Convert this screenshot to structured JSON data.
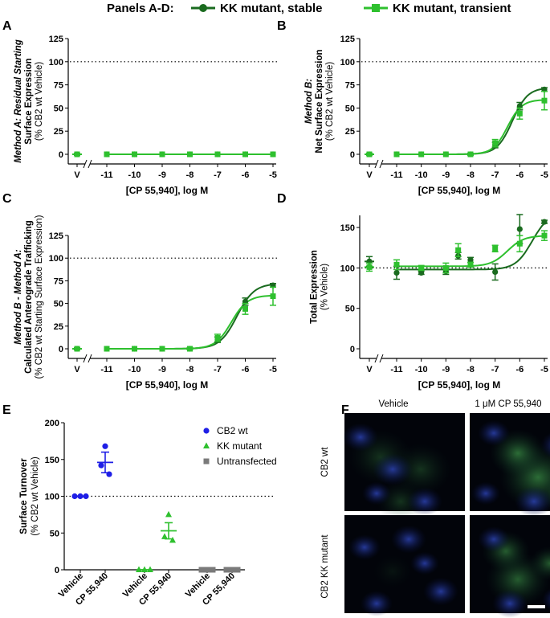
{
  "legend": {
    "title": "Panels A-D:",
    "series": [
      {
        "name": "KK mutant, stable",
        "color": "#1a6b1f"
      },
      {
        "name": "KK mutant, transient",
        "color": "#2ec02e"
      }
    ]
  },
  "panel_letters": {
    "A": "A",
    "B": "B",
    "C": "C",
    "D": "D",
    "E": "E",
    "F": "F"
  },
  "chart_data": [
    {
      "panel": "A",
      "type": "scatter",
      "ylabel_lines": [
        "Method A: Residual Starting",
        "Surface Expression",
        "(% CB2 wt Vehicle)"
      ],
      "xlabel": "[CP 55,940], log M",
      "xticks": [
        "V",
        "-11",
        "-10",
        "-9",
        "-8",
        "-7",
        "-6",
        "-5"
      ],
      "yticks": [
        0,
        25,
        50,
        75,
        100,
        125
      ],
      "ylim": [
        0,
        125
      ],
      "ref_line": 100,
      "series": [
        {
          "name": "KK mutant, stable",
          "x": [
            "V",
            -11,
            -10,
            -9,
            -8,
            -7,
            -6,
            -5
          ],
          "y": [
            0,
            0,
            0,
            0,
            0,
            0,
            0,
            0
          ],
          "err": [
            1,
            0,
            0,
            0,
            0,
            0,
            0,
            0
          ]
        },
        {
          "name": "KK mutant, transient",
          "x": [
            "V",
            -11,
            -10,
            -9,
            -8,
            -7,
            -6,
            -5
          ],
          "y": [
            0,
            0,
            0,
            0,
            0,
            0,
            0,
            0
          ],
          "err": [
            1,
            0,
            0,
            0,
            0,
            0,
            0,
            0
          ]
        }
      ]
    },
    {
      "panel": "B",
      "type": "scatter",
      "ylabel_lines": [
        "Method B:",
        "Net Surface Expression",
        "(% CB2 wt Vehicle)"
      ],
      "xlabel": "[CP 55,940], log M",
      "xticks": [
        "V",
        "-11",
        "-10",
        "-9",
        "-8",
        "-7",
        "-6",
        "-5"
      ],
      "yticks": [
        0,
        25,
        50,
        75,
        100,
        125
      ],
      "ylim": [
        0,
        125
      ],
      "ref_line": 100,
      "series": [
        {
          "name": "KK mutant, stable",
          "x": [
            "V",
            -11,
            -10,
            -9,
            -8,
            -7,
            -6,
            -5
          ],
          "y": [
            0,
            0,
            0,
            0,
            0,
            10,
            52,
            70
          ],
          "err": [
            1,
            0,
            0,
            0,
            1,
            3,
            4,
            2
          ]
        },
        {
          "name": "KK mutant, transient",
          "x": [
            "V",
            -11,
            -10,
            -9,
            -8,
            -7,
            -6,
            -5
          ],
          "y": [
            0,
            0,
            0,
            0,
            0,
            12,
            44,
            58
          ],
          "err": [
            1,
            0,
            0,
            0,
            1,
            4,
            6,
            10
          ]
        }
      ]
    },
    {
      "panel": "C",
      "type": "scatter",
      "ylabel_lines": [
        "Method B - Method A:",
        "Calculated Anterograde Trafficking",
        "(% CB2 wt Starting Surface Expression)"
      ],
      "xlabel": "[CP 55,940], log M",
      "xticks": [
        "V",
        "-11",
        "-10",
        "-9",
        "-8",
        "-7",
        "-6",
        "-5"
      ],
      "yticks": [
        0,
        25,
        50,
        75,
        100,
        125
      ],
      "ylim": [
        0,
        125
      ],
      "ref_line": 100,
      "series": [
        {
          "name": "KK mutant, stable",
          "x": [
            "V",
            -11,
            -10,
            -9,
            -8,
            -7,
            -6,
            -5
          ],
          "y": [
            0,
            0,
            0,
            0,
            0,
            10,
            52,
            70
          ],
          "err": [
            1,
            0,
            0,
            0,
            1,
            3,
            4,
            2
          ]
        },
        {
          "name": "KK mutant, transient",
          "x": [
            "V",
            -11,
            -10,
            -9,
            -8,
            -7,
            -6,
            -5
          ],
          "y": [
            0,
            0,
            0,
            0,
            0,
            12,
            44,
            58
          ],
          "err": [
            1,
            0,
            0,
            0,
            1,
            4,
            6,
            10
          ]
        }
      ]
    },
    {
      "panel": "D",
      "type": "scatter",
      "ylabel_lines": [
        "Total Expression",
        "(% Vehicle)"
      ],
      "xlabel": "[CP 55,940], log M",
      "xticks": [
        "V",
        "-11",
        "-10",
        "-9",
        "-8",
        "-7",
        "-6",
        "-5"
      ],
      "yticks": [
        0,
        50,
        100,
        150
      ],
      "ylim": [
        0,
        165
      ],
      "ref_line": 100,
      "series": [
        {
          "name": "KK mutant, stable",
          "x": [
            "V",
            -11,
            -10,
            -9,
            -8.5,
            -8,
            -7,
            -6,
            -5
          ],
          "y": [
            108,
            94,
            94,
            96,
            115,
            110,
            95,
            148,
            157
          ],
          "err": [
            6,
            8,
            2,
            4,
            4,
            3,
            10,
            18,
            2
          ]
        },
        {
          "name": "KK mutant, transient",
          "x": [
            "V",
            -11,
            -10,
            -9,
            -8.5,
            -8,
            -7,
            -6,
            -5
          ],
          "y": [
            101,
            104,
            100,
            100,
            122,
            104,
            124,
            130,
            140
          ],
          "err": [
            5,
            6,
            3,
            6,
            8,
            3,
            4,
            10,
            6
          ]
        }
      ]
    },
    {
      "panel": "E",
      "type": "scatter",
      "ylabel_lines": [
        "Surface Turnover",
        "(% CB2 wt Vehicle)"
      ],
      "categories": [
        "Vehicle",
        "CP 55,940",
        "Vehicle",
        "CP 55,940",
        "Vehicle",
        "CP 55,940"
      ],
      "yticks": [
        0,
        50,
        100,
        150,
        200
      ],
      "ylim": [
        0,
        200
      ],
      "ref_line": 100,
      "series": [
        {
          "name": "CB2 wt",
          "color": "#1f1fe6",
          "shape": "circle",
          "groups": [
            {
              "x": 0,
              "points": [
                100,
                100,
                100
              ],
              "mean": 100,
              "sem": 0
            },
            {
              "x": 1,
              "points": [
                168,
                142,
                130
              ],
              "mean": 146,
              "sem": 14
            }
          ]
        },
        {
          "name": "KK mutant",
          "color": "#2ec02e",
          "shape": "triangle",
          "groups": [
            {
              "x": 2,
              "points": [
                0,
                0,
                0
              ],
              "mean": 0,
              "sem": 0
            },
            {
              "x": 3,
              "points": [
                75,
                45,
                40
              ],
              "mean": 53,
              "sem": 11
            }
          ]
        },
        {
          "name": "Untransfected",
          "color": "#7a7a7a",
          "shape": "square",
          "groups": [
            {
              "x": 4,
              "points": [
                0,
                0,
                0
              ],
              "mean": 0,
              "sem": 0
            },
            {
              "x": 5,
              "points": [
                0,
                0,
                0
              ],
              "mean": 0,
              "sem": 0
            }
          ]
        }
      ]
    }
  ],
  "images": {
    "col_labels": [
      "Vehicle",
      "1 μM CP 55,940"
    ],
    "row_labels": [
      "CB2 wt",
      "CB2 KK mutant"
    ]
  }
}
